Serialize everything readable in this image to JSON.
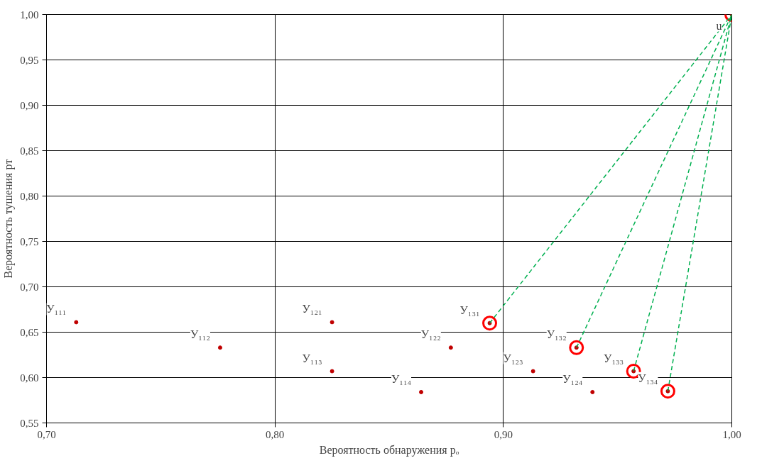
{
  "chart_data": {
    "type": "scatter",
    "xlabel": "Вероятность обнаружения pₒ",
    "ylabel": "Вероятность тушения pт",
    "xlim": [
      0.7,
      1.0
    ],
    "ylim": [
      0.55,
      1.0
    ],
    "xticks": [
      {
        "value": 0.7,
        "label": "0,70"
      },
      {
        "value": 0.8,
        "label": "0,80"
      },
      {
        "value": 0.9,
        "label": "0,90"
      },
      {
        "value": 1.0,
        "label": "1,00"
      }
    ],
    "yticks": [
      {
        "value": 0.55,
        "label": "0,55"
      },
      {
        "value": 0.6,
        "label": "0,60"
      },
      {
        "value": 0.65,
        "label": "0,65"
      },
      {
        "value": 0.7,
        "label": "0,70"
      },
      {
        "value": 0.75,
        "label": "0,75"
      },
      {
        "value": 0.8,
        "label": "0,80"
      },
      {
        "value": 0.85,
        "label": "0,85"
      },
      {
        "value": 0.9,
        "label": "0,90"
      },
      {
        "value": 0.95,
        "label": "0,95"
      },
      {
        "value": 1.0,
        "label": "1,00"
      }
    ],
    "grid": true,
    "marker": "circle",
    "series": [
      {
        "color": "#c00000",
        "x": [
          0.713,
          0.776,
          0.825,
          0.825,
          0.864,
          0.877,
          0.894,
          0.913,
          0.932,
          0.939,
          0.957,
          0.972,
          1.0
        ],
        "values": [
          0.661,
          0.633,
          0.661,
          0.607,
          0.584,
          0.633,
          0.66,
          0.607,
          0.633,
          0.584,
          0.607,
          0.585,
          1.0
        ]
      },
      {
        "color": "#ff0000",
        "x": [
          0.894,
          0.932,
          0.957,
          0.972,
          1.0
        ],
        "values": [
          0.66,
          0.633,
          0.607,
          0.585,
          1.0
        ]
      },
      {
        "type": "line",
        "marker": "none",
        "color": "#00b050",
        "line_style": "dashed",
        "x": [
          0.894,
          1.0
        ],
        "values": [
          0.66,
          1.0
        ]
      },
      {
        "type": "line",
        "marker": "none",
        "color": "#00b050",
        "line_style": "dashed",
        "x": [
          0.932,
          1.0
        ],
        "values": [
          0.633,
          1.0
        ]
      },
      {
        "type": "line",
        "marker": "none",
        "color": "#00b050",
        "line_style": "dashed",
        "x": [
          0.957,
          1.0
        ],
        "values": [
          0.607,
          1.0
        ]
      },
      {
        "type": "line",
        "marker": "none",
        "color": "#00b050",
        "line_style": "dashed",
        "x": [
          0.972,
          1.0
        ],
        "values": [
          0.585,
          1.0
        ]
      }
    ],
    "annotations": [
      {
        "text": "У₁₁₁",
        "x": 0.713,
        "y": 0.661
      },
      {
        "text": "У₁₁₂",
        "x": 0.776,
        "y": 0.633
      },
      {
        "text": "У₁₂₁",
        "x": 0.825,
        "y": 0.661
      },
      {
        "text": "У₁₁₃",
        "x": 0.825,
        "y": 0.607
      },
      {
        "text": "У₁₁₄",
        "x": 0.864,
        "y": 0.584
      },
      {
        "text": "У₁₂₂",
        "x": 0.877,
        "y": 0.633
      },
      {
        "text": "У₁₃₁",
        "x": 0.894,
        "y": 0.66
      },
      {
        "text": "У₁₂₃",
        "x": 0.913,
        "y": 0.607
      },
      {
        "text": "У₁₃₂",
        "x": 0.932,
        "y": 0.633
      },
      {
        "text": "У₁₂₄",
        "x": 0.939,
        "y": 0.584
      },
      {
        "text": "У₁₃₃",
        "x": 0.957,
        "y": 0.607
      },
      {
        "text": "У₁₃₄",
        "x": 0.972,
        "y": 0.585
      },
      {
        "text": "u",
        "x": 1.0,
        "y": 1.0
      }
    ]
  }
}
